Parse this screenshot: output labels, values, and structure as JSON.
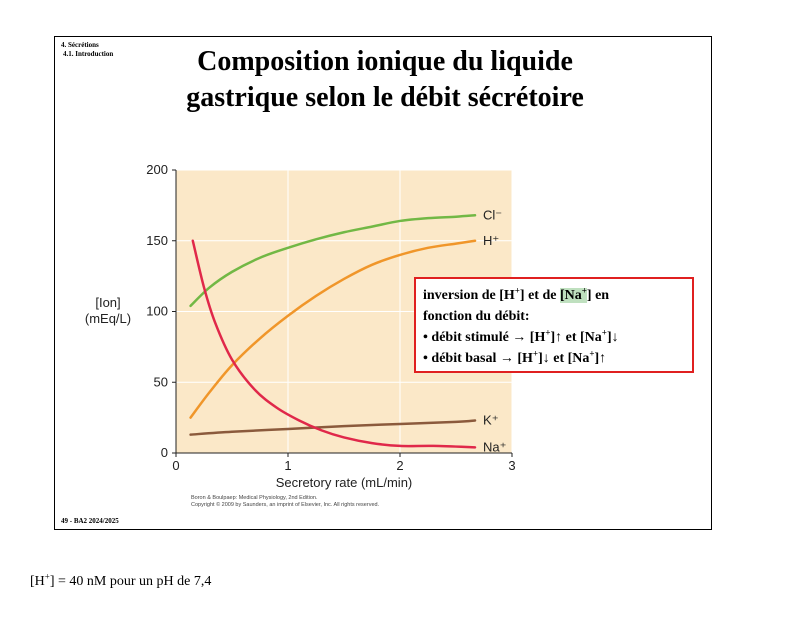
{
  "slide": {
    "section": "4. Sécrétions",
    "subsection": "4.1. Introduction",
    "title_line1": "Composition ionique du liquide",
    "title_line2": "gastrique selon le débit sécrétoire",
    "footer": "49 - BA2 2024/2025"
  },
  "chart_data": {
    "type": "line",
    "xlabel": "Secretory rate (mL/min)",
    "ylabel_line1": "[Ion]",
    "ylabel_line2": "(mEq/L)",
    "xlim": [
      0,
      3
    ],
    "ylim": [
      0,
      200
    ],
    "xticks": [
      "0",
      "1",
      "2",
      "3"
    ],
    "yticks": [
      "0",
      "50",
      "100",
      "150",
      "200"
    ],
    "grid": true,
    "background": "#fbe8c8",
    "series": [
      {
        "name": "Cl⁻",
        "color": "#72b845",
        "x": [
          0.13,
          0.3,
          0.5,
          0.75,
          1.0,
          1.25,
          1.5,
          1.75,
          2.0,
          2.25,
          2.5,
          2.67
        ],
        "y": [
          104,
          117,
          128,
          138,
          145,
          151,
          156,
          160,
          164,
          166,
          167,
          168
        ]
      },
      {
        "name": "H⁺",
        "color": "#f0962a",
        "x": [
          0.13,
          0.3,
          0.5,
          0.75,
          1.0,
          1.25,
          1.5,
          1.75,
          2.0,
          2.25,
          2.5,
          2.67
        ],
        "y": [
          25,
          43,
          62,
          81,
          97,
          111,
          123,
          133,
          140,
          145,
          148,
          150
        ]
      },
      {
        "name": "K⁺",
        "color": "#8b5a3c",
        "x": [
          0.13,
          0.5,
          1.0,
          1.5,
          2.0,
          2.5,
          2.67
        ],
        "y": [
          13,
          15,
          17,
          19,
          20.5,
          22,
          23
        ]
      },
      {
        "name": "Na⁺",
        "color": "#e0284a",
        "x": [
          0.15,
          0.25,
          0.35,
          0.5,
          0.7,
          0.9,
          1.1,
          1.3,
          1.5,
          1.75,
          2.0,
          2.3,
          2.67
        ],
        "y": [
          150,
          117,
          92,
          66,
          45,
          32,
          23,
          16,
          11,
          7,
          5,
          5,
          4
        ]
      }
    ],
    "source_line1": "Boron & Boulpaep: Medical Physiology, 2nd Edition.",
    "source_line2": "Copyright © 2009 by Saunders, an imprint of Elsevier, Inc. All rights reserved."
  },
  "callout": {
    "line1_a": "inversion de [H",
    "line1_b": "] et de ",
    "line1_c": "[Na",
    "line1_d": "]",
    "line1_e": " en",
    "line2": "fonction du débit:",
    "line3_a": "• débit stimulé → [H",
    "line3_b": "]↑ et [Na",
    "line3_c": "]↓",
    "line4_a": "• débit basal → [H",
    "line4_b": "]↓ et [Na",
    "line4_c": "]↑",
    "sup": "+"
  },
  "note": {
    "a": "[H",
    "sup": "+",
    "b": "] = 40 nM pour un pH de 7,4"
  }
}
